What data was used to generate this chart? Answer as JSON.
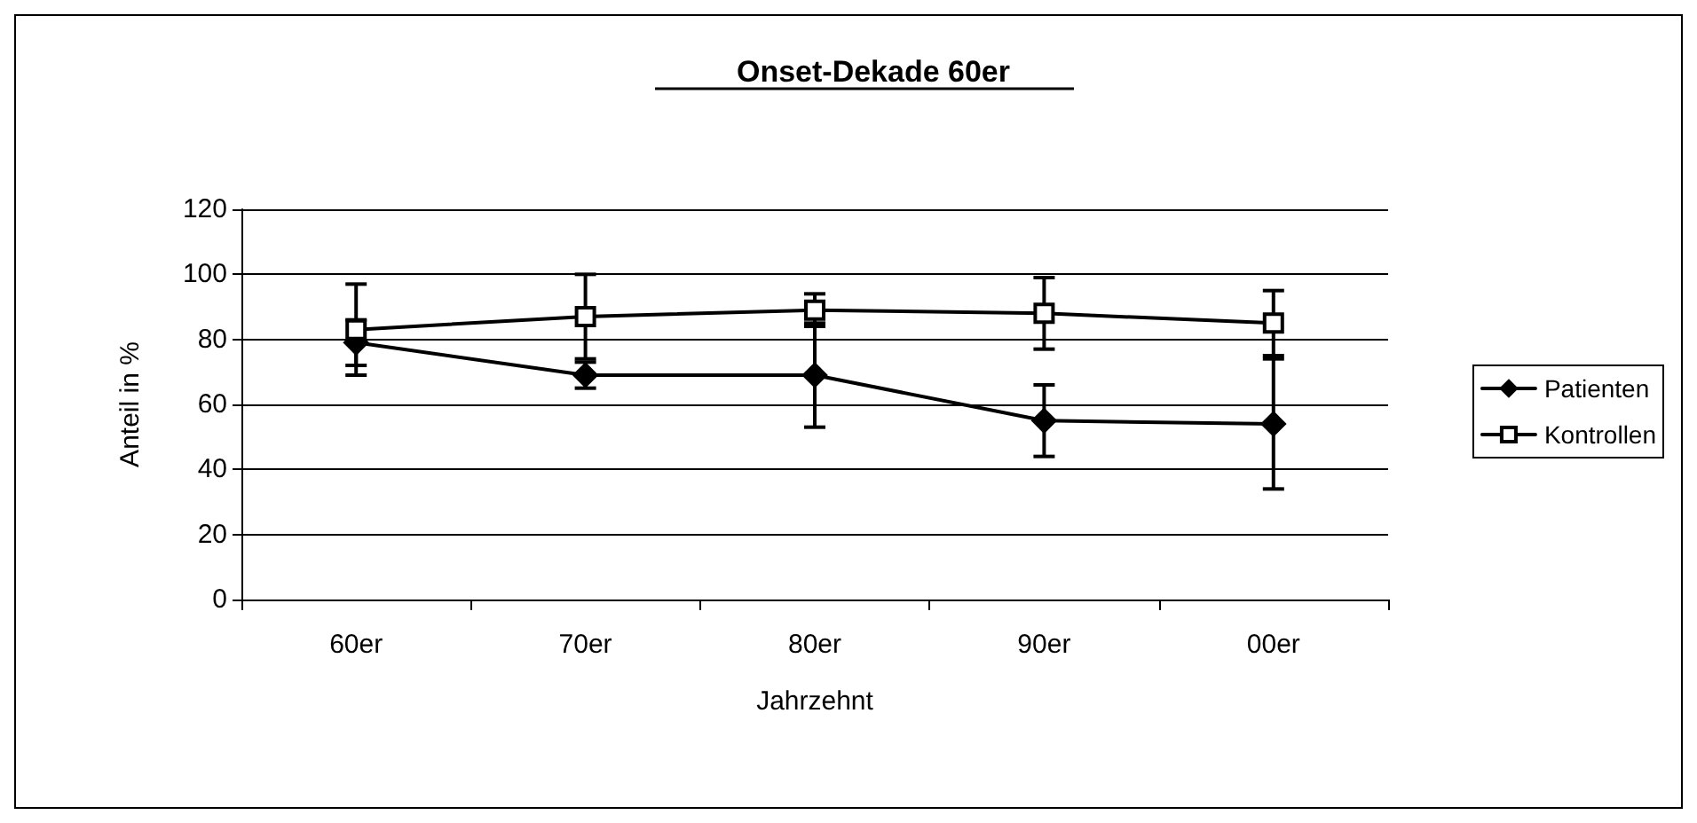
{
  "chart_data": {
    "type": "line",
    "title": "Onset-Dekade 60er",
    "xlabel": "Jahrzehnt",
    "ylabel": "Anteil in %",
    "categories": [
      "60er",
      "70er",
      "80er",
      "90er",
      "00er"
    ],
    "series": [
      {
        "name": "Patienten",
        "color": "#000000",
        "marker": "diamond",
        "values": [
          79,
          69,
          69,
          55,
          54
        ],
        "errors": [
          7,
          4,
          16,
          11,
          20
        ]
      },
      {
        "name": "Kontrollen",
        "color": "#000000",
        "marker": "square",
        "values": [
          83,
          87,
          89,
          88,
          85
        ],
        "errors": [
          14,
          13,
          5,
          11,
          10
        ]
      }
    ],
    "ylim": [
      0,
      120
    ],
    "yticks": [
      0,
      20,
      40,
      60,
      80,
      100,
      120
    ],
    "grid": "y",
    "legend": "right",
    "line_style": "solid"
  }
}
